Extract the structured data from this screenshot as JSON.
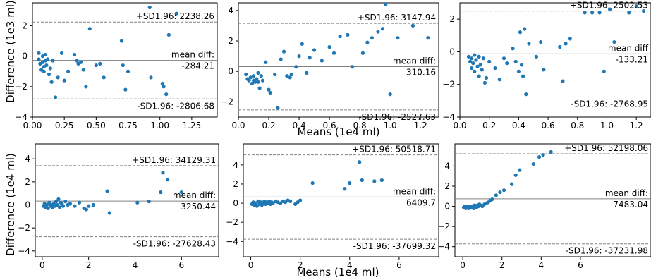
{
  "figure": {
    "ylabel_top": "Difference (1e3 ml)",
    "ylabel_bottom": "Difference (1e4 ml)",
    "xlabel_top_middle": "Means (1e4 ml)",
    "xlabel_bottom_middle": "Means (1e4 ml)"
  },
  "colors": {
    "points": "#1f77b4",
    "mean_line": "#808080",
    "sd_line": "#808080",
    "axis": "#000000"
  },
  "chart_data": [
    {
      "type": "scatter",
      "panel": "top-left",
      "xlim": [
        0,
        1.45
      ],
      "ylim": [
        -4,
        3.5
      ],
      "xticks": [
        "0.00",
        "0.25",
        "0.50",
        "0.75",
        "1.00",
        "1.25"
      ],
      "yticks": [
        "−4",
        "−2",
        "0",
        "2"
      ],
      "sd_upper": {
        "value": 2.24,
        "label": "+SD1.96: 2238.26"
      },
      "mean": {
        "value": -0.28,
        "label_top": "mean diff:",
        "label_bottom": "-284.21"
      },
      "sd_lower": {
        "value": -2.81,
        "label": "-SD1.96: -2806.68"
      },
      "points": [
        [
          0.05,
          -0.2
        ],
        [
          0.05,
          0.2
        ],
        [
          0.06,
          -0.5
        ],
        [
          0.07,
          -0.9
        ],
        [
          0.08,
          -0.4
        ],
        [
          0.08,
          0.0
        ],
        [
          0.09,
          -0.7
        ],
        [
          0.09,
          -1.0
        ],
        [
          0.1,
          0.1
        ],
        [
          0.1,
          -0.3
        ],
        [
          0.11,
          -0.6
        ],
        [
          0.12,
          -0.2
        ],
        [
          0.13,
          -1.2
        ],
        [
          0.14,
          -0.8
        ],
        [
          0.15,
          -1.7
        ],
        [
          0.16,
          -0.3
        ],
        [
          0.18,
          -2.7
        ],
        [
          0.2,
          -1.4
        ],
        [
          0.23,
          0.2
        ],
        [
          0.25,
          -1.6
        ],
        [
          0.28,
          -1.0
        ],
        [
          0.33,
          0.1
        ],
        [
          0.35,
          -0.3
        ],
        [
          0.36,
          -0.5
        ],
        [
          0.38,
          -0.4
        ],
        [
          0.4,
          -0.9
        ],
        [
          0.42,
          -2.0
        ],
        [
          0.45,
          1.8
        ],
        [
          0.5,
          -0.6
        ],
        [
          0.53,
          -0.5
        ],
        [
          0.56,
          -1.4
        ],
        [
          0.7,
          1.0
        ],
        [
          0.71,
          -0.6
        ],
        [
          0.73,
          -2.2
        ],
        [
          0.75,
          -1.0
        ],
        [
          0.92,
          3.2
        ],
        [
          0.93,
          -1.4
        ],
        [
          1.02,
          -1.8
        ],
        [
          1.03,
          -2.0
        ],
        [
          1.05,
          -2.5
        ],
        [
          1.07,
          1.4
        ],
        [
          1.13,
          2.8
        ]
      ]
    },
    {
      "type": "scatter",
      "panel": "top-middle",
      "xlim": [
        0,
        1.32
      ],
      "ylim": [
        -3,
        4.5
      ],
      "xticks": [
        "0.0",
        "0.2",
        "0.4",
        "0.6",
        "0.8",
        "1.0",
        "1.2"
      ],
      "yticks": [
        "−2",
        "0",
        "2",
        "4"
      ],
      "sd_upper": {
        "value": 3.15,
        "label": "+SD1.96: 3147.94"
      },
      "mean": {
        "value": 0.31,
        "label_top": "mean diff:",
        "label_bottom": "310.16"
      },
      "sd_lower": {
        "value": -2.53,
        "label": "-SD1.96: -2527.63"
      },
      "points": [
        [
          0.05,
          -0.2
        ],
        [
          0.06,
          -0.5
        ],
        [
          0.07,
          -0.6
        ],
        [
          0.08,
          -0.4
        ],
        [
          0.09,
          -0.8
        ],
        [
          0.1,
          -0.6
        ],
        [
          0.1,
          -0.3
        ],
        [
          0.11,
          -0.7
        ],
        [
          0.12,
          -0.5
        ],
        [
          0.13,
          -0.1
        ],
        [
          0.13,
          -0.7
        ],
        [
          0.14,
          -1.1
        ],
        [
          0.15,
          -0.3
        ],
        [
          0.16,
          -0.6
        ],
        [
          0.18,
          0.6
        ],
        [
          0.2,
          -1.2
        ],
        [
          0.21,
          -1.4
        ],
        [
          0.24,
          -0.2
        ],
        [
          0.26,
          -2.4
        ],
        [
          0.28,
          0.8
        ],
        [
          0.3,
          1.3
        ],
        [
          0.32,
          -0.3
        ],
        [
          0.34,
          -0.4
        ],
        [
          0.35,
          -0.2
        ],
        [
          0.38,
          0.3
        ],
        [
          0.4,
          1.0
        ],
        [
          0.42,
          1.8
        ],
        [
          0.45,
          -0.1
        ],
        [
          0.47,
          0.9
        ],
        [
          0.5,
          1.4
        ],
        [
          0.55,
          0.7
        ],
        [
          0.6,
          1.6
        ],
        [
          0.63,
          1.2
        ],
        [
          0.67,
          2.3
        ],
        [
          0.72,
          2.4
        ],
        [
          0.75,
          0.3
        ],
        [
          0.82,
          1.2
        ],
        [
          0.85,
          1.9
        ],
        [
          0.88,
          2.2
        ],
        [
          0.92,
          2.6
        ],
        [
          0.95,
          2.8
        ],
        [
          0.97,
          4.4
        ],
        [
          1.0,
          -1.5
        ],
        [
          1.05,
          2.2
        ],
        [
          1.15,
          3.0
        ],
        [
          1.25,
          2.2
        ]
      ]
    },
    {
      "type": "scatter",
      "panel": "top-right",
      "xlim": [
        0,
        1.3
      ],
      "ylim": [
        -4,
        3
      ],
      "xticks": [
        "0.0",
        "0.2",
        "0.4",
        "0.6",
        "0.8",
        "1.0",
        "1.2"
      ],
      "yticks": [
        "−4",
        "−2",
        "0",
        "2"
      ],
      "sd_upper": {
        "value": 2.5,
        "label": "+SD1.96: 2502.53"
      },
      "mean": {
        "value": -0.13,
        "label_top": "mean diff",
        "label_bottom": "-133.21"
      },
      "sd_lower": {
        "value": -2.77,
        "label": "-SD1.96: -2768.95"
      },
      "points": [
        [
          0.06,
          -0.3
        ],
        [
          0.07,
          -0.6
        ],
        [
          0.08,
          -0.4
        ],
        [
          0.08,
          -1.0
        ],
        [
          0.09,
          -0.7
        ],
        [
          0.1,
          -0.2
        ],
        [
          0.1,
          -1.2
        ],
        [
          0.11,
          -0.5
        ],
        [
          0.12,
          -0.9
        ],
        [
          0.13,
          -0.3
        ],
        [
          0.13,
          -1.5
        ],
        [
          0.14,
          -0.8
        ],
        [
          0.15,
          -1.1
        ],
        [
          0.16,
          -0.4
        ],
        [
          0.17,
          -1.9
        ],
        [
          0.18,
          -1.6
        ],
        [
          0.2,
          -0.6
        ],
        [
          0.24,
          -1.0
        ],
        [
          0.27,
          -1.7
        ],
        [
          0.3,
          -0.4
        ],
        [
          0.32,
          -0.7
        ],
        [
          0.36,
          0.2
        ],
        [
          0.38,
          -0.6
        ],
        [
          0.4,
          -1.2
        ],
        [
          0.41,
          1.2
        ],
        [
          0.42,
          -0.8
        ],
        [
          0.43,
          -1.5
        ],
        [
          0.44,
          1.4
        ],
        [
          0.45,
          -2.6
        ],
        [
          0.47,
          0.5
        ],
        [
          0.52,
          -0.3
        ],
        [
          0.55,
          0.6
        ],
        [
          0.57,
          -1.1
        ],
        [
          0.68,
          0.3
        ],
        [
          0.7,
          -1.8
        ],
        [
          0.72,
          0.5
        ],
        [
          0.75,
          0.8
        ],
        [
          0.85,
          2.4
        ],
        [
          0.9,
          2.4
        ],
        [
          0.95,
          2.4
        ],
        [
          0.98,
          -1.2
        ],
        [
          1.02,
          2.6
        ],
        [
          1.05,
          0.6
        ],
        [
          1.15,
          2.4
        ],
        [
          1.2,
          2.8
        ],
        [
          1.25,
          2.5
        ]
      ]
    },
    {
      "type": "scatter",
      "panel": "bottom-left",
      "xlim": [
        -0.3,
        7.6
      ],
      "ylim": [
        -4.5,
        5.3
      ],
      "xticks": [
        "0",
        "2",
        "4",
        "6"
      ],
      "yticks": [
        "−4",
        "−2",
        "0",
        "2",
        "4"
      ],
      "sd_upper": {
        "value": 3.41,
        "label": "+SD1.96: 34129.31"
      },
      "mean": {
        "value": 0.33,
        "label_top": "mean diff:",
        "label_bottom": "3250.44"
      },
      "sd_lower": {
        "value": -2.76,
        "label": "-SD1.96: -27628.43"
      },
      "points": [
        [
          0.05,
          -0.1
        ],
        [
          0.1,
          0.1
        ],
        [
          0.15,
          -0.2
        ],
        [
          0.2,
          0.0
        ],
        [
          0.25,
          -0.3
        ],
        [
          0.3,
          0.2
        ],
        [
          0.35,
          -0.1
        ],
        [
          0.4,
          0.0
        ],
        [
          0.45,
          -0.2
        ],
        [
          0.5,
          0.1
        ],
        [
          0.55,
          -0.1
        ],
        [
          0.6,
          0.3
        ],
        [
          0.65,
          0.0
        ],
        [
          0.7,
          0.5
        ],
        [
          0.75,
          -0.2
        ],
        [
          0.8,
          0.2
        ],
        [
          0.85,
          0.1
        ],
        [
          0.9,
          -0.1
        ],
        [
          1.0,
          0.3
        ],
        [
          1.1,
          0.0
        ],
        [
          1.2,
          0.1
        ],
        [
          1.4,
          -0.1
        ],
        [
          1.6,
          0.2
        ],
        [
          1.8,
          -0.3
        ],
        [
          1.9,
          -0.4
        ],
        [
          2.0,
          -0.1
        ],
        [
          2.2,
          0.0
        ],
        [
          2.8,
          1.2
        ],
        [
          2.9,
          -0.7
        ],
        [
          4.1,
          0.2
        ],
        [
          4.6,
          0.3
        ],
        [
          5.1,
          1.1
        ],
        [
          5.2,
          2.8
        ],
        [
          5.4,
          2.2
        ],
        [
          6.0,
          1.1
        ]
      ]
    },
    {
      "type": "scatter",
      "panel": "bottom-middle",
      "xlim": [
        -0.3,
        7.6
      ],
      "ylim": [
        -5.6,
        6.2
      ],
      "xticks": [
        "0",
        "2",
        "4",
        "6"
      ],
      "yticks": [
        "−4",
        "−2",
        "0",
        "2",
        "4"
      ],
      "sd_upper": {
        "value": 5.05,
        "label": "+SD1.96: 50518.71"
      },
      "mean": {
        "value": 0.64,
        "label_top": "mean diff:",
        "label_bottom": "6409.7"
      },
      "sd_lower": {
        "value": -3.77,
        "label": "-SD1.96: -37699.32"
      },
      "points": [
        [
          0.05,
          -0.1
        ],
        [
          0.1,
          0.1
        ],
        [
          0.15,
          -0.2
        ],
        [
          0.2,
          0.0
        ],
        [
          0.25,
          -0.3
        ],
        [
          0.3,
          0.2
        ],
        [
          0.35,
          -0.1
        ],
        [
          0.4,
          0.1
        ],
        [
          0.45,
          -0.2
        ],
        [
          0.5,
          0.0
        ],
        [
          0.55,
          0.2
        ],
        [
          0.6,
          -0.1
        ],
        [
          0.65,
          0.1
        ],
        [
          0.7,
          0.0
        ],
        [
          0.75,
          0.2
        ],
        [
          0.8,
          -0.1
        ],
        [
          0.85,
          0.1
        ],
        [
          0.9,
          0.0
        ],
        [
          1.0,
          0.2
        ],
        [
          1.1,
          0.1
        ],
        [
          1.2,
          0.0
        ],
        [
          1.3,
          0.2
        ],
        [
          1.4,
          0.1
        ],
        [
          1.5,
          0.3
        ],
        [
          1.6,
          0.2
        ],
        [
          1.8,
          -0.1
        ],
        [
          1.9,
          0.1
        ],
        [
          2.0,
          0.3
        ],
        [
          2.5,
          2.1
        ],
        [
          3.8,
          1.5
        ],
        [
          4.0,
          2.1
        ],
        [
          4.4,
          4.3
        ],
        [
          4.5,
          2.4
        ],
        [
          5.0,
          2.3
        ],
        [
          5.3,
          2.4
        ]
      ]
    },
    {
      "type": "scatter",
      "panel": "bottom-right",
      "xlim": [
        -0.4,
        9.6
      ],
      "ylim": [
        -5.0,
        6.2
      ],
      "xticks": [
        "0",
        "2",
        "4",
        "6"
      ],
      "yticks": [
        "−4",
        "−2",
        "0",
        "2",
        "4"
      ],
      "sd_upper": {
        "value": 5.22,
        "label": "+SD1.96: 52198.06"
      },
      "mean": {
        "value": 0.75,
        "label_top": "mean diff:",
        "label_bottom": "7483.04"
      },
      "sd_lower": {
        "value": -3.72,
        "label": "-SD1.96: -37231.98"
      },
      "points": [
        [
          0.05,
          -0.1
        ],
        [
          0.1,
          0.0
        ],
        [
          0.15,
          -0.2
        ],
        [
          0.2,
          -0.1
        ],
        [
          0.25,
          0.0
        ],
        [
          0.3,
          -0.2
        ],
        [
          0.35,
          -0.1
        ],
        [
          0.4,
          0.0
        ],
        [
          0.45,
          -0.1
        ],
        [
          0.5,
          0.0
        ],
        [
          0.55,
          -0.2
        ],
        [
          0.6,
          0.1
        ],
        [
          0.65,
          0.0
        ],
        [
          0.7,
          -0.1
        ],
        [
          0.75,
          0.1
        ],
        [
          0.8,
          0.0
        ],
        [
          0.85,
          0.2
        ],
        [
          0.9,
          0.1
        ],
        [
          1.0,
          0.0
        ],
        [
          1.1,
          0.2
        ],
        [
          1.2,
          0.3
        ],
        [
          1.3,
          0.4
        ],
        [
          1.4,
          0.6
        ],
        [
          1.5,
          0.7
        ],
        [
          1.7,
          1.1
        ],
        [
          1.9,
          1.4
        ],
        [
          2.1,
          1.6
        ],
        [
          2.5,
          2.2
        ],
        [
          2.7,
          3.1
        ],
        [
          2.9,
          3.6
        ],
        [
          3.6,
          4.2
        ],
        [
          3.9,
          4.9
        ],
        [
          4.1,
          5.1
        ],
        [
          4.5,
          5.4
        ]
      ]
    }
  ]
}
